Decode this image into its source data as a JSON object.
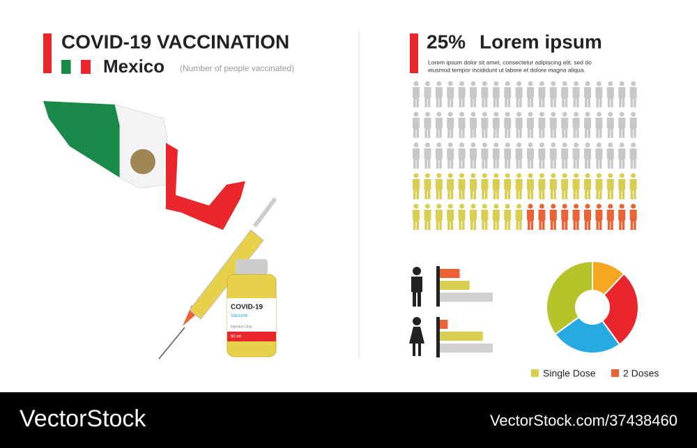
{
  "header": {
    "title": "COVID-19 VACCINATION",
    "country": "Mexico",
    "subtitle": "(Number of people vaccinated)"
  },
  "illustration": {
    "vial_title": "COVID-19",
    "vial_subtitle": "Vaccine",
    "vial_note": "Injection Only",
    "vial_volume": "50 ml"
  },
  "panel": {
    "percent": "25%",
    "title": "Lorem ipsum",
    "text": [
      "Lorem ipsum dolor sit amet, consectetur adipiscing elit, sed do",
      "eiusmod tempor incididunt ut labore et dolore magna aliqua."
    ]
  },
  "chart_data": [
    {
      "type": "pictogram",
      "total": 100,
      "rest_color": "#c8c8c8",
      "series": [
        {
          "name": "Single Dose",
          "color": "#d8cf52",
          "values": [
            30
          ]
        },
        {
          "name": "2 Doses",
          "color": "#ea6236",
          "values": [
            10
          ]
        }
      ]
    },
    {
      "type": "bar",
      "figure": "male",
      "xlim": [
        0,
        100
      ],
      "values": [
        30,
        45,
        80
      ],
      "colors": [
        "#ea6236",
        "#d8cf52",
        "#d0d0d0"
      ]
    },
    {
      "type": "bar",
      "figure": "female",
      "xlim": [
        0,
        100
      ],
      "values": [
        12,
        65,
        80
      ],
      "colors": [
        "#ea6236",
        "#d8cf52",
        "#d0d0d0"
      ]
    },
    {
      "type": "pie",
      "values": [
        12,
        28,
        25,
        35
      ],
      "colors": [
        "#f5a623",
        "#e8262b",
        "#27a9e1",
        "#b6c42a"
      ]
    }
  ],
  "footer": {
    "brand": "VectorStock",
    "url": "VectorStock.com/37438460"
  }
}
